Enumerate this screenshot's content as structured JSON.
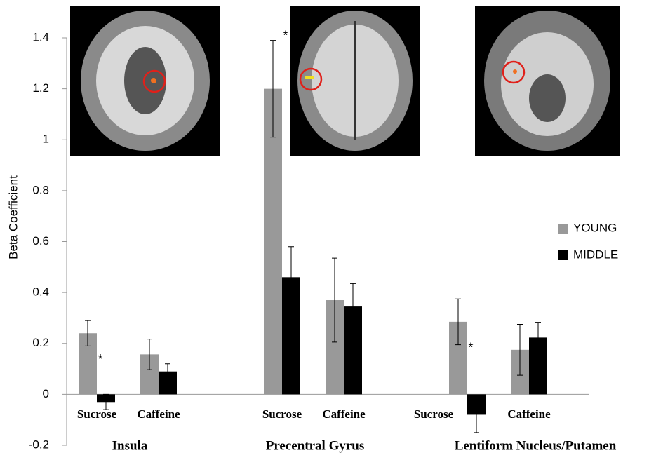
{
  "chart_data": {
    "type": "bar",
    "y_label": "Beta Coefficient",
    "categories": [
      "Sucrose",
      "Caffeine",
      "Sucrose",
      "Caffeine",
      "Sucrose",
      "Caffeine"
    ],
    "groups": [
      "Insula",
      "Precentral Gyrus",
      "Lentiform Nucleus/Putamen"
    ],
    "series": [
      {
        "name": "YOUNG",
        "color": "#999999",
        "values": [
          0.24,
          0.157,
          1.2,
          0.37,
          0.285,
          0.175
        ],
        "errors": [
          0.05,
          0.06,
          0.19,
          0.165,
          0.09,
          0.1
        ]
      },
      {
        "name": "MIDDLE",
        "color": "#000000",
        "values": [
          -0.03,
          0.09,
          0.46,
          0.345,
          -0.08,
          0.223
        ],
        "errors": [
          0.03,
          0.03,
          0.12,
          0.09,
          0.07,
          0.06
        ]
      }
    ],
    "annotations": [
      "*",
      "*",
      "*"
    ],
    "ylim": [
      -0.2,
      1.4
    ],
    "yticks": [
      -0.2,
      0,
      0.2,
      0.4,
      0.6,
      0.8,
      1,
      1.2,
      1.4
    ],
    "legend": "right"
  }
}
